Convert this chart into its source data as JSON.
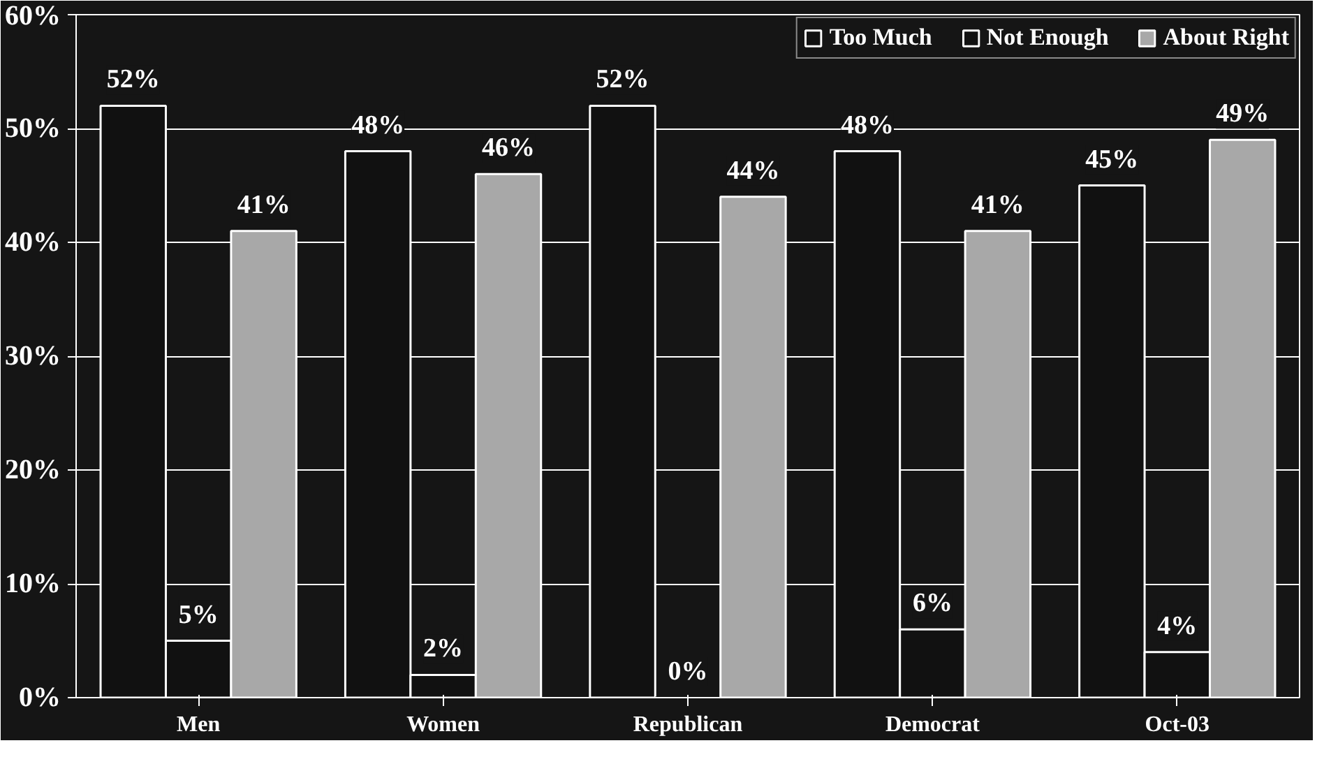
{
  "chart_data": {
    "type": "bar",
    "categories": [
      "Men",
      "Women",
      "Republican",
      "Democrat",
      "Oct-03"
    ],
    "series": [
      {
        "name": "Too Much",
        "color": "#111111",
        "values": [
          52,
          48,
          52,
          48,
          45
        ],
        "value_labels": [
          "52%",
          "48%",
          "52%",
          "48%",
          "45%"
        ]
      },
      {
        "name": "Not Enough",
        "color": "#111111",
        "values": [
          5,
          2,
          0,
          6,
          4
        ],
        "value_labels": [
          "5%",
          "2%",
          "0%",
          "6%",
          "4%"
        ]
      },
      {
        "name": "About Right",
        "color": "#a8a8a8",
        "values": [
          41,
          46,
          44,
          41,
          49
        ],
        "value_labels": [
          "41%",
          "46%",
          "44%",
          "41%",
          "49%"
        ]
      }
    ],
    "ylim": [
      0,
      60
    ],
    "yticks": [
      {
        "value": 0,
        "label": "0%"
      },
      {
        "value": 10,
        "label": "10%"
      },
      {
        "value": 20,
        "label": "20%"
      },
      {
        "value": 30,
        "label": "30%"
      },
      {
        "value": 40,
        "label": "40%"
      },
      {
        "value": 50,
        "label": "50%"
      },
      {
        "value": 60,
        "label": "60%"
      }
    ],
    "grid": "y",
    "legend": "top right"
  }
}
